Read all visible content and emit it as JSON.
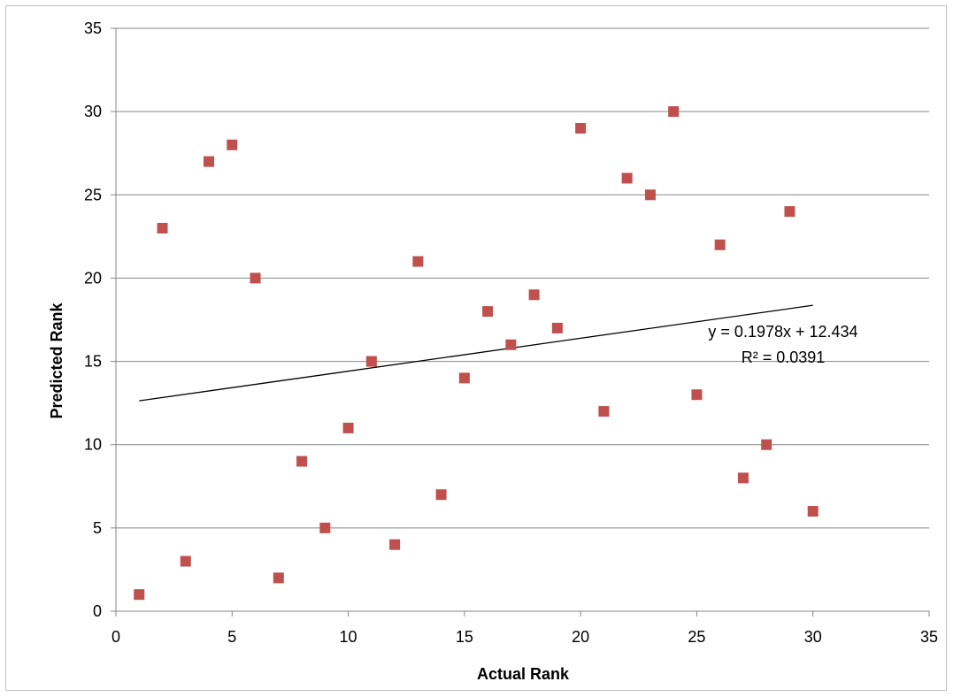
{
  "chart_data": {
    "type": "scatter",
    "xlabel": "Actual Rank",
    "ylabel": "Predicted  Rank",
    "xlim": [
      0,
      35
    ],
    "ylim": [
      0,
      35
    ],
    "x_ticks": [
      0,
      5,
      10,
      15,
      20,
      25,
      30,
      35
    ],
    "y_ticks": [
      0,
      5,
      10,
      15,
      20,
      25,
      30,
      35
    ],
    "grid": "horizontal",
    "marker_color": "#c0504d",
    "trendline_color": "#000000",
    "series": [
      {
        "points": [
          {
            "x": 1,
            "y": 1
          },
          {
            "x": 2,
            "y": 23
          },
          {
            "x": 3,
            "y": 3
          },
          {
            "x": 4,
            "y": 27
          },
          {
            "x": 5,
            "y": 28
          },
          {
            "x": 6,
            "y": 20
          },
          {
            "x": 7,
            "y": 2
          },
          {
            "x": 8,
            "y": 9
          },
          {
            "x": 9,
            "y": 5
          },
          {
            "x": 10,
            "y": 11
          },
          {
            "x": 11,
            "y": 15
          },
          {
            "x": 12,
            "y": 4
          },
          {
            "x": 13,
            "y": 21
          },
          {
            "x": 14,
            "y": 7
          },
          {
            "x": 15,
            "y": 14
          },
          {
            "x": 16,
            "y": 18
          },
          {
            "x": 17,
            "y": 16
          },
          {
            "x": 18,
            "y": 19
          },
          {
            "x": 19,
            "y": 17
          },
          {
            "x": 20,
            "y": 29
          },
          {
            "x": 21,
            "y": 12
          },
          {
            "x": 22,
            "y": 26
          },
          {
            "x": 23,
            "y": 25
          },
          {
            "x": 24,
            "y": 30
          },
          {
            "x": 25,
            "y": 13
          },
          {
            "x": 26,
            "y": 22
          },
          {
            "x": 27,
            "y": 8
          },
          {
            "x": 28,
            "y": 10
          },
          {
            "x": 29,
            "y": 24
          },
          {
            "x": 30,
            "y": 6
          }
        ]
      }
    ],
    "trendline": {
      "slope": 0.1978,
      "intercept": 12.434,
      "x_range": [
        1,
        30
      ],
      "equation": "y = 0.1978x + 12.434",
      "r_squared": "R² = 0.0391"
    }
  }
}
